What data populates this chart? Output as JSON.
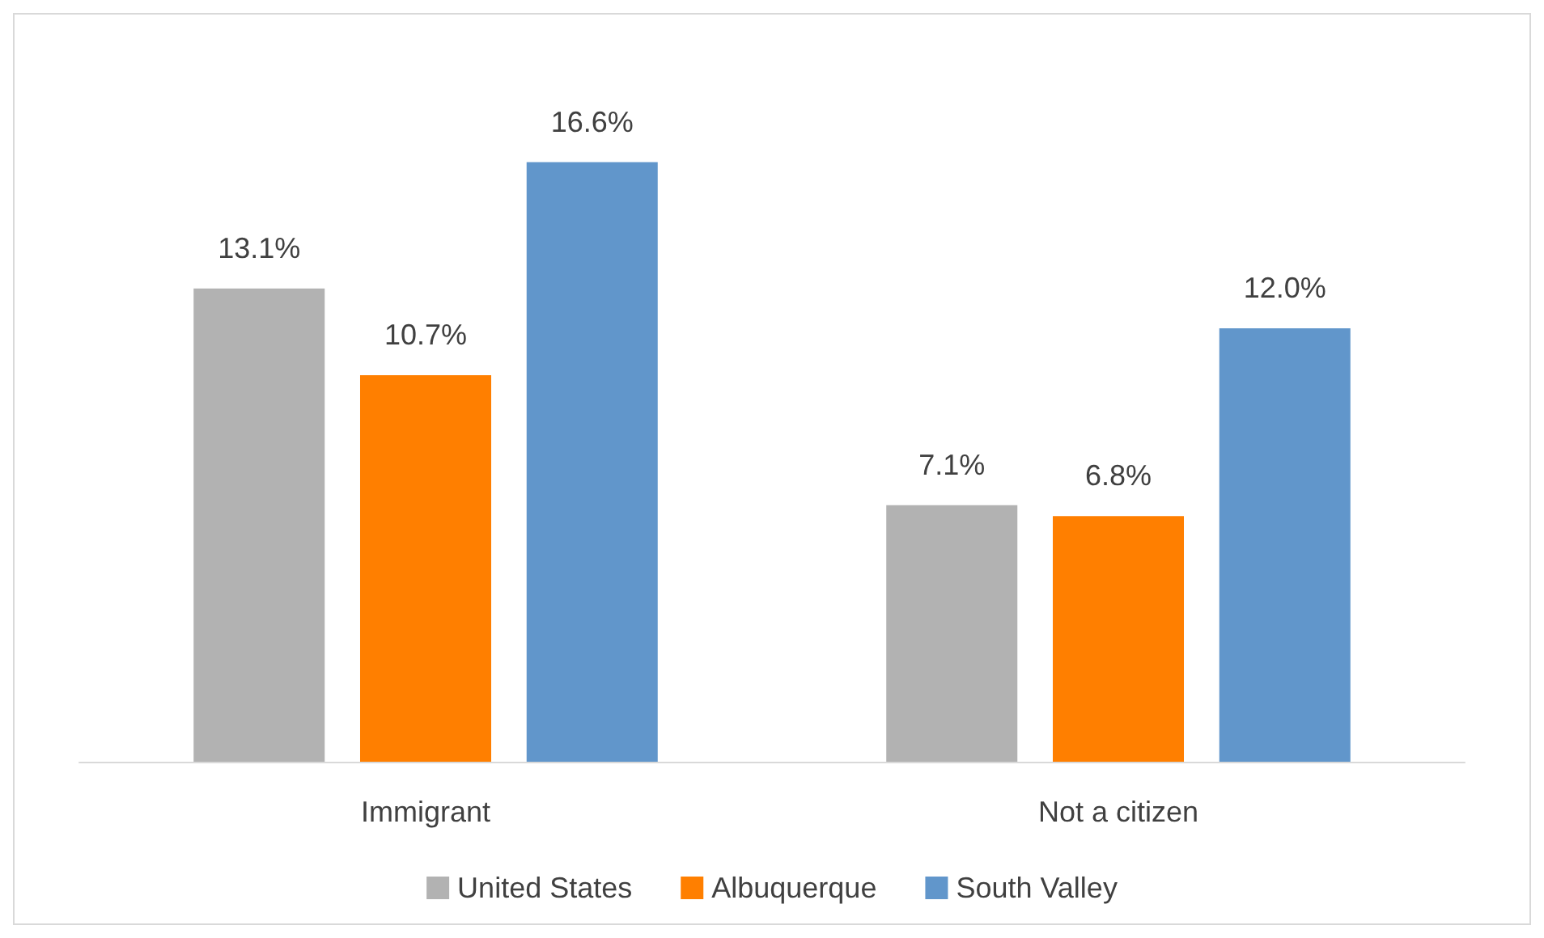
{
  "chart_data": {
    "type": "bar",
    "categories": [
      "Immigrant",
      "Not a citizen"
    ],
    "series": [
      {
        "name": "United States",
        "color": "#b2b2b2",
        "values": [
          13.1,
          7.1
        ],
        "value_labels": [
          "13.1%",
          "7.1%"
        ]
      },
      {
        "name": "Albuquerque",
        "color": "#ff7f00",
        "values": [
          10.7,
          6.8
        ],
        "value_labels": [
          "10.7%",
          "6.8%"
        ]
      },
      {
        "name": "South Valley",
        "color": "#6196cb",
        "values": [
          16.6,
          12.0
        ],
        "value_labels": [
          "16.6%",
          "12.0%"
        ]
      }
    ],
    "legend": "bottom",
    "tick_labels": "x"
  }
}
